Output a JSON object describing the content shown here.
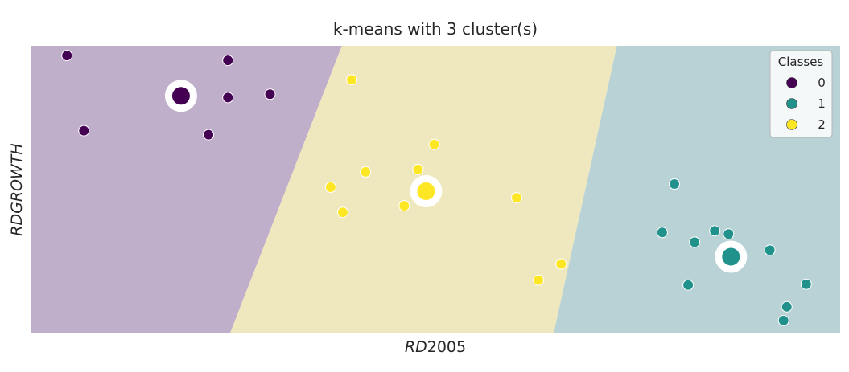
{
  "chart_data": {
    "type": "scatter",
    "title": "k-means with 3 cluster(s)",
    "xlabel_italic": "RD",
    "xlabel_plain": "2005",
    "ylabel": "RDGROWTH",
    "xlim": [
      0,
      1000
    ],
    "ylim": [
      0,
      355
    ],
    "grid": false,
    "legend": {
      "title": "Classes",
      "placement": "top-right",
      "entries": [
        {
          "label": "0",
          "color": "#440154"
        },
        {
          "label": "1",
          "color": "#21918c"
        },
        {
          "label": "2",
          "color": "#fde725"
        }
      ]
    },
    "regions": [
      {
        "class": "0",
        "color": "#c0afca",
        "polygon": [
          [
            0,
            355
          ],
          [
            384,
            355
          ],
          [
            246,
            0
          ],
          [
            0,
            0
          ]
        ]
      },
      {
        "class": "2",
        "color": "#efe8be",
        "polygon": [
          [
            384,
            355
          ],
          [
            724,
            355
          ],
          [
            646,
            0
          ],
          [
            246,
            0
          ]
        ]
      },
      {
        "class": "1",
        "color": "#b8d2d6",
        "polygon": [
          [
            724,
            355
          ],
          [
            1000,
            355
          ],
          [
            1000,
            0
          ],
          [
            646,
            0
          ]
        ]
      }
    ],
    "series": [
      {
        "name": "0",
        "color": "#440154",
        "points": [
          [
            44,
            343
          ],
          [
            243,
            337
          ],
          [
            243,
            291
          ],
          [
            295,
            295
          ],
          [
            65,
            250
          ],
          [
            219,
            245
          ]
        ]
      },
      {
        "name": "1",
        "color": "#21918c",
        "points": [
          [
            795,
            184
          ],
          [
            780,
            124
          ],
          [
            820,
            112
          ],
          [
            845,
            126
          ],
          [
            862,
            122
          ],
          [
            913,
            102
          ],
          [
            812,
            59
          ],
          [
            958,
            60
          ],
          [
            934,
            32
          ],
          [
            930,
            15
          ]
        ]
      },
      {
        "name": "2",
        "color": "#fde725",
        "points": [
          [
            396,
            313
          ],
          [
            498,
            233
          ],
          [
            413,
            199
          ],
          [
            478,
            202
          ],
          [
            370,
            180
          ],
          [
            600,
            167
          ],
          [
            385,
            149
          ],
          [
            461,
            157
          ],
          [
            655,
            85
          ],
          [
            627,
            65
          ]
        ]
      }
    ],
    "centroids": [
      {
        "class": "0",
        "color": "#440154",
        "point": [
          185,
          293
        ]
      },
      {
        "class": "2",
        "color": "#fde725",
        "point": [
          488,
          175
        ]
      },
      {
        "class": "1",
        "color": "#21918c",
        "point": [
          865,
          94
        ]
      }
    ]
  }
}
